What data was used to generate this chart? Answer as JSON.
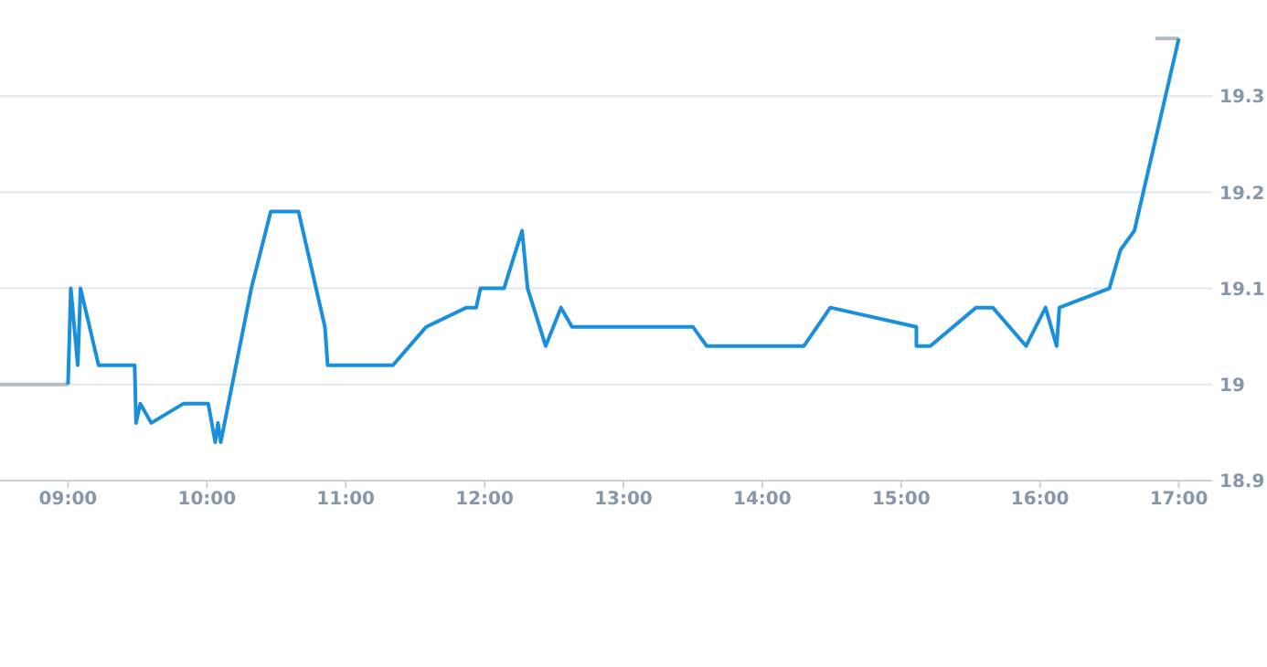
{
  "chart_data": {
    "type": "line",
    "xlim": [
      8.51,
      17.24
    ],
    "ylim": [
      18.9,
      19.4
    ],
    "xticks": [
      {
        "value": 9,
        "label": "09:00"
      },
      {
        "value": 10,
        "label": "10:00"
      },
      {
        "value": 11,
        "label": "11:00"
      },
      {
        "value": 12,
        "label": "12:00"
      },
      {
        "value": 13,
        "label": "13:00"
      },
      {
        "value": 14,
        "label": "14:00"
      },
      {
        "value": 15,
        "label": "15:00"
      },
      {
        "value": 16,
        "label": "16:00"
      },
      {
        "value": 17,
        "label": "17:00"
      }
    ],
    "yticks": [
      18.9,
      19,
      19.1,
      19.2,
      19.3
    ],
    "grid": "y",
    "legend": false,
    "marker": "none",
    "line_style": "solid",
    "series": [
      {
        "color": "#b3bcc6",
        "x": [
          8.51,
          9.0
        ],
        "values": [
          19.0,
          19.0
        ]
      },
      {
        "color": "#b3bcc6",
        "x": [
          16.83,
          17.0
        ],
        "values": [
          19.36,
          19.36
        ]
      },
      {
        "color": "#1a8fdb",
        "x": [
          9.0,
          9.02,
          9.07,
          9.09,
          9.22,
          9.48,
          9.49,
          9.52,
          9.6,
          9.83,
          10.01,
          10.06,
          10.08,
          10.1,
          10.32,
          10.46,
          10.66,
          10.85,
          10.87,
          11.34,
          11.58,
          11.87,
          11.94,
          11.97,
          12.14,
          12.27,
          12.31,
          12.44,
          12.55,
          12.63,
          13.5,
          13.6,
          14.3,
          14.49,
          15.11,
          15.11,
          15.21,
          15.54,
          15.66,
          15.9,
          16.04,
          16.12,
          16.14,
          16.5,
          16.58,
          16.68,
          17.0
        ],
        "values": [
          19.0,
          19.1,
          19.02,
          19.1,
          19.02,
          19.02,
          18.96,
          18.98,
          18.96,
          18.98,
          18.98,
          18.94,
          18.96,
          18.94,
          19.1,
          19.18,
          19.18,
          19.06,
          19.02,
          19.02,
          19.06,
          19.08,
          19.08,
          19.1,
          19.1,
          19.16,
          19.1,
          19.04,
          19.08,
          19.06,
          19.06,
          19.04,
          19.04,
          19.08,
          19.06,
          19.04,
          19.04,
          19.08,
          19.08,
          19.04,
          19.08,
          19.04,
          19.08,
          19.1,
          19.14,
          19.16,
          19.36
        ]
      }
    ]
  }
}
